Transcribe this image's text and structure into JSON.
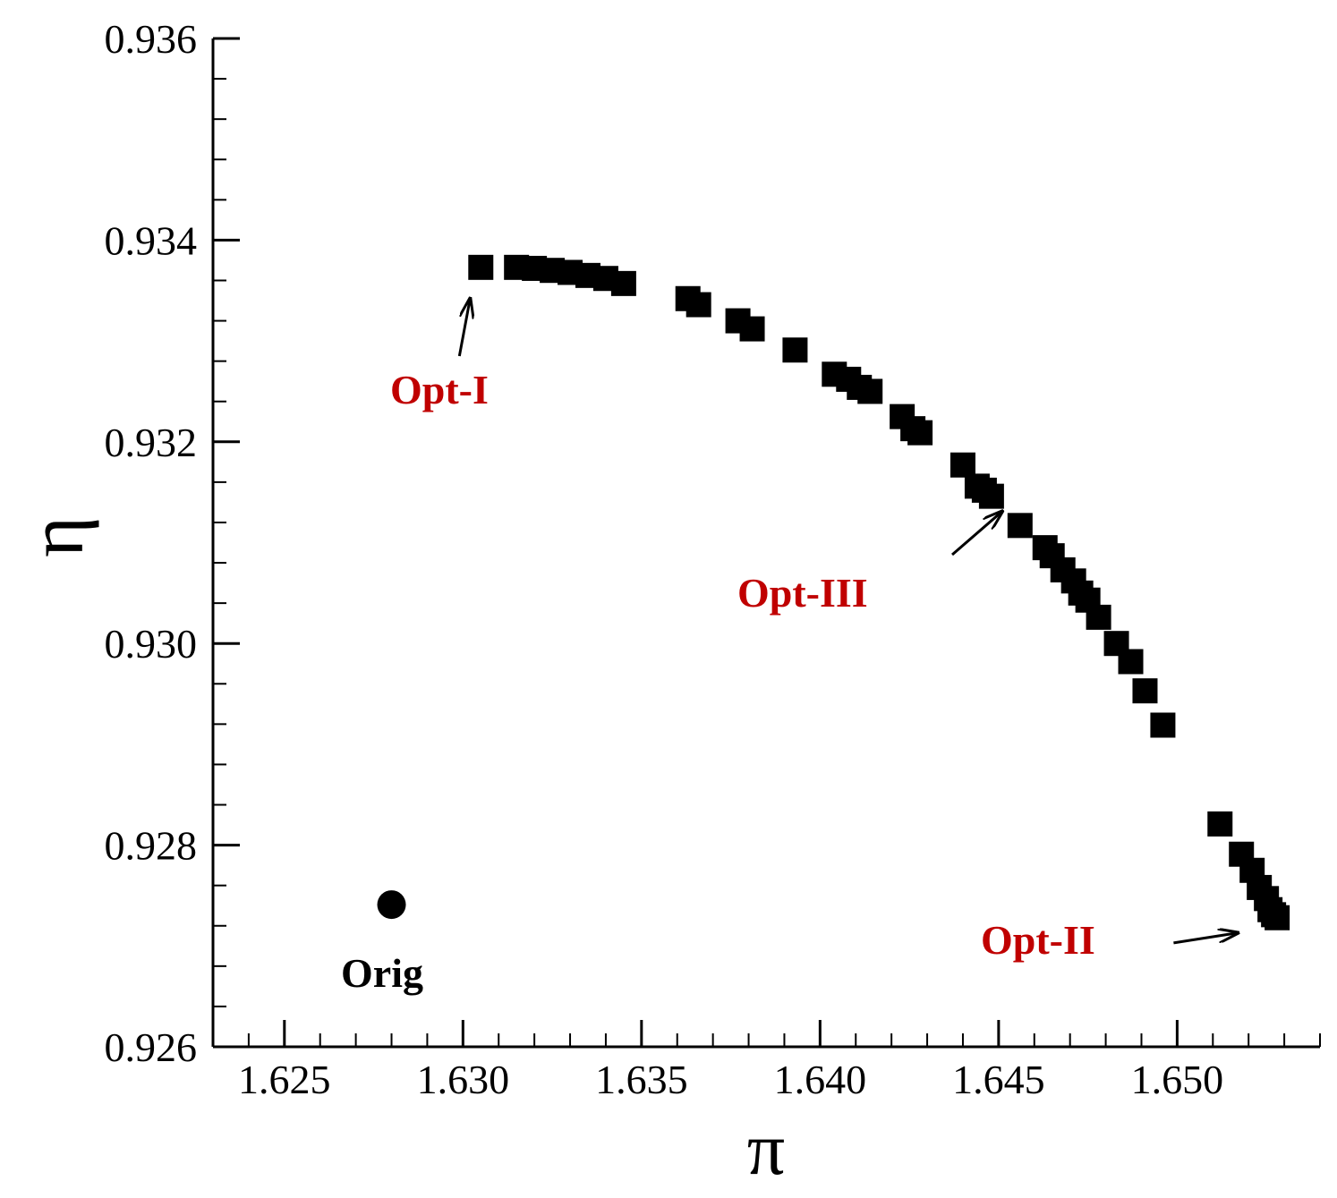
{
  "chart_data": {
    "type": "scatter",
    "xlabel": "π",
    "ylabel": "η",
    "xlim": [
      1.623,
      1.654
    ],
    "ylim": [
      0.926,
      0.936
    ],
    "x_ticks": [
      "1.625",
      "1.630",
      "1.635",
      "1.640",
      "1.645",
      "1.650"
    ],
    "y_ticks": [
      "0.926",
      "0.928",
      "0.930",
      "0.932",
      "0.934",
      "0.936"
    ],
    "grid": false,
    "colors": {
      "points": "#000000",
      "annotation": "#c00000",
      "orig_label": "#000000"
    },
    "series": [
      {
        "marker": "square",
        "x": [
          1.6305,
          1.6315,
          1.632,
          1.6325,
          1.633,
          1.6335,
          1.634,
          1.6345,
          1.6363,
          1.6366,
          1.6377,
          1.6381,
          1.6393,
          1.6404,
          1.6408,
          1.6411,
          1.6414,
          1.6423,
          1.6426,
          1.6428,
          1.644,
          1.6444,
          1.6446,
          1.6448,
          1.6456,
          1.6463,
          1.6465,
          1.6468,
          1.6471,
          1.6473,
          1.6475,
          1.6478,
          1.6483,
          1.6487,
          1.6491,
          1.6496,
          1.6512,
          1.6518,
          1.6521,
          1.6523,
          1.6525,
          1.6526,
          1.6527,
          1.6528
        ],
        "y": [
          0.93373,
          0.93373,
          0.93372,
          0.9337,
          0.93368,
          0.93365,
          0.93362,
          0.93357,
          0.93342,
          0.93336,
          0.9332,
          0.93312,
          0.93291,
          0.93267,
          0.93262,
          0.93254,
          0.9325,
          0.93225,
          0.93213,
          0.93209,
          0.93177,
          0.93156,
          0.93152,
          0.93146,
          0.93117,
          0.93095,
          0.93087,
          0.93073,
          0.93062,
          0.9305,
          0.93043,
          0.93026,
          0.93,
          0.92982,
          0.92953,
          0.92919,
          0.92821,
          0.92791,
          0.92775,
          0.92758,
          0.92747,
          0.92736,
          0.92731,
          0.92728
        ]
      },
      {
        "marker": "circle",
        "x": [
          1.628
        ],
        "y": [
          0.92741
        ]
      }
    ],
    "annotations": [
      {
        "text": "Opt-I",
        "arrow_from": [
          1.6299,
          0.93285
        ],
        "arrow_to": [
          1.6302,
          0.93342
        ]
      },
      {
        "text": "Opt-III",
        "arrow_from": [
          1.6437,
          0.93088
        ],
        "arrow_to": [
          1.6451,
          0.93131
        ]
      },
      {
        "text": "Opt-II",
        "arrow_from": [
          1.6499,
          0.92703
        ],
        "arrow_to": [
          1.6517,
          0.92713
        ]
      },
      {
        "text": "Orig"
      }
    ]
  }
}
